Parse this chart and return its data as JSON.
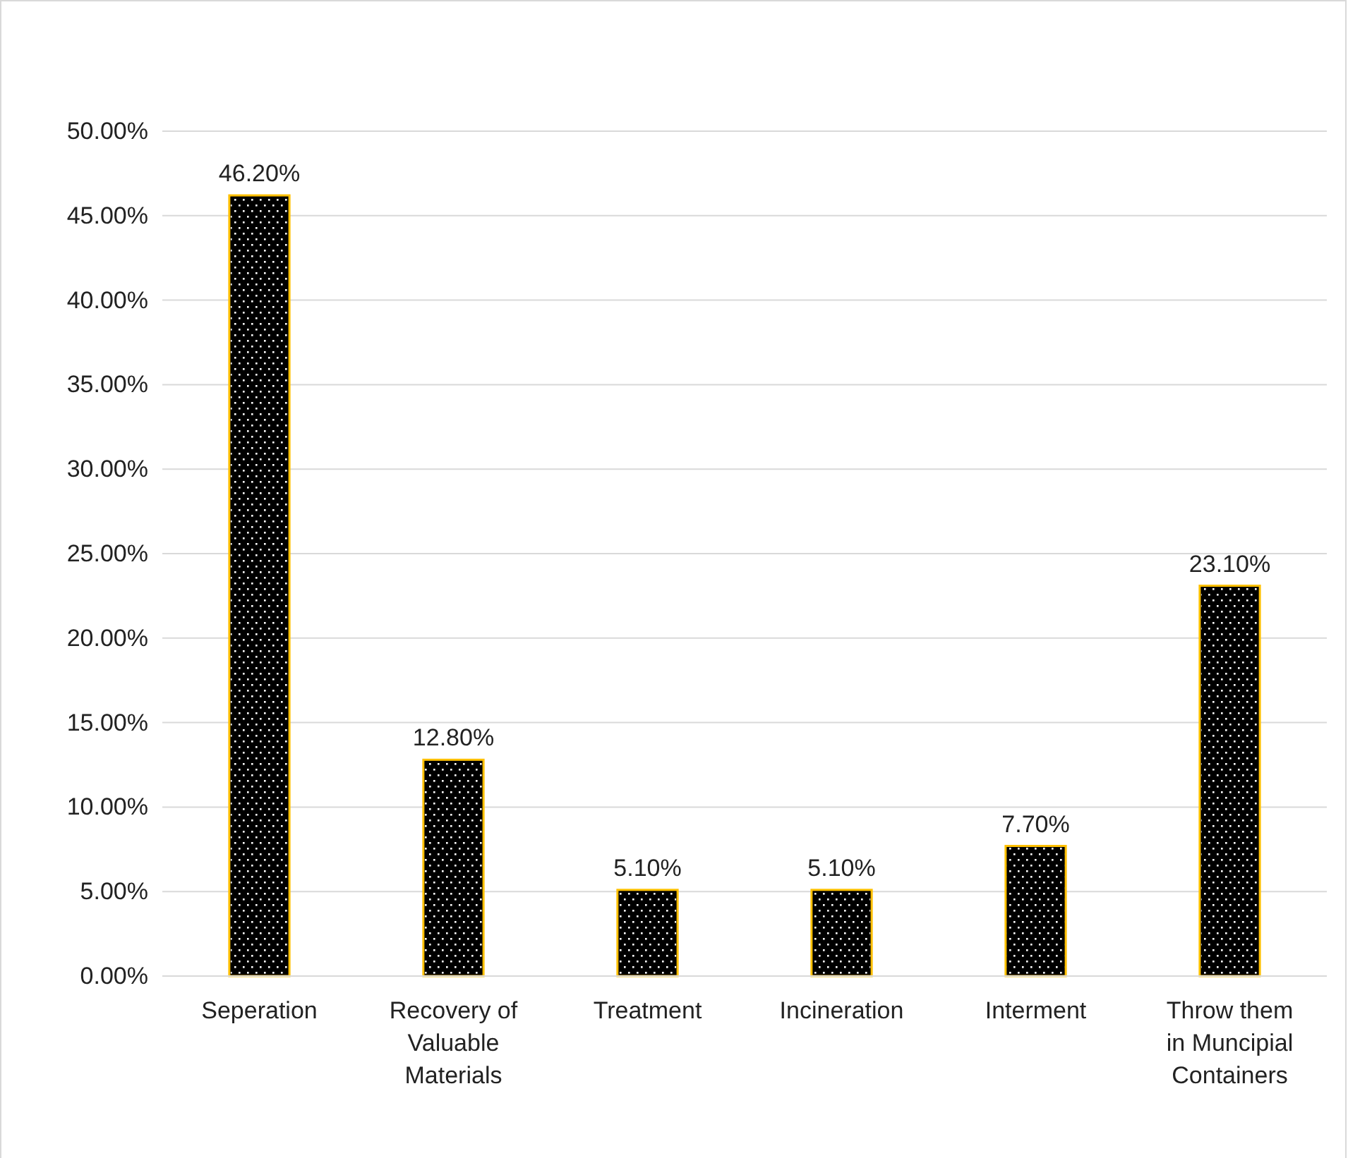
{
  "chart_data": {
    "type": "bar",
    "categories": [
      "Seperation",
      "Recovery of Valuable Materials",
      "Treatment",
      "Incineration",
      "Interment",
      "Throw them in Muncipial Containers"
    ],
    "values": [
      46.2,
      12.8,
      5.1,
      5.1,
      7.7,
      23.1
    ],
    "color": "#000000",
    "value_labels": [
      "46.20%",
      "12.80%",
      "5.10%",
      "5.10%",
      "7.70%",
      "23.10%"
    ],
    "ylim": [
      0,
      50
    ],
    "yticks": [
      {
        "value": 0,
        "label": "0.00%"
      },
      {
        "value": 5,
        "label": "5.00%"
      },
      {
        "value": 10,
        "label": "10.00%"
      },
      {
        "value": 15,
        "label": "15.00%"
      },
      {
        "value": 20,
        "label": "20.00%"
      },
      {
        "value": 25,
        "label": "25.00%"
      },
      {
        "value": 30,
        "label": "30.00%"
      },
      {
        "value": 35,
        "label": "35.00%"
      },
      {
        "value": 40,
        "label": "40.00%"
      },
      {
        "value": 45,
        "label": "45.00%"
      },
      {
        "value": 50,
        "label": "50.00%"
      }
    ],
    "grid": "y"
  }
}
